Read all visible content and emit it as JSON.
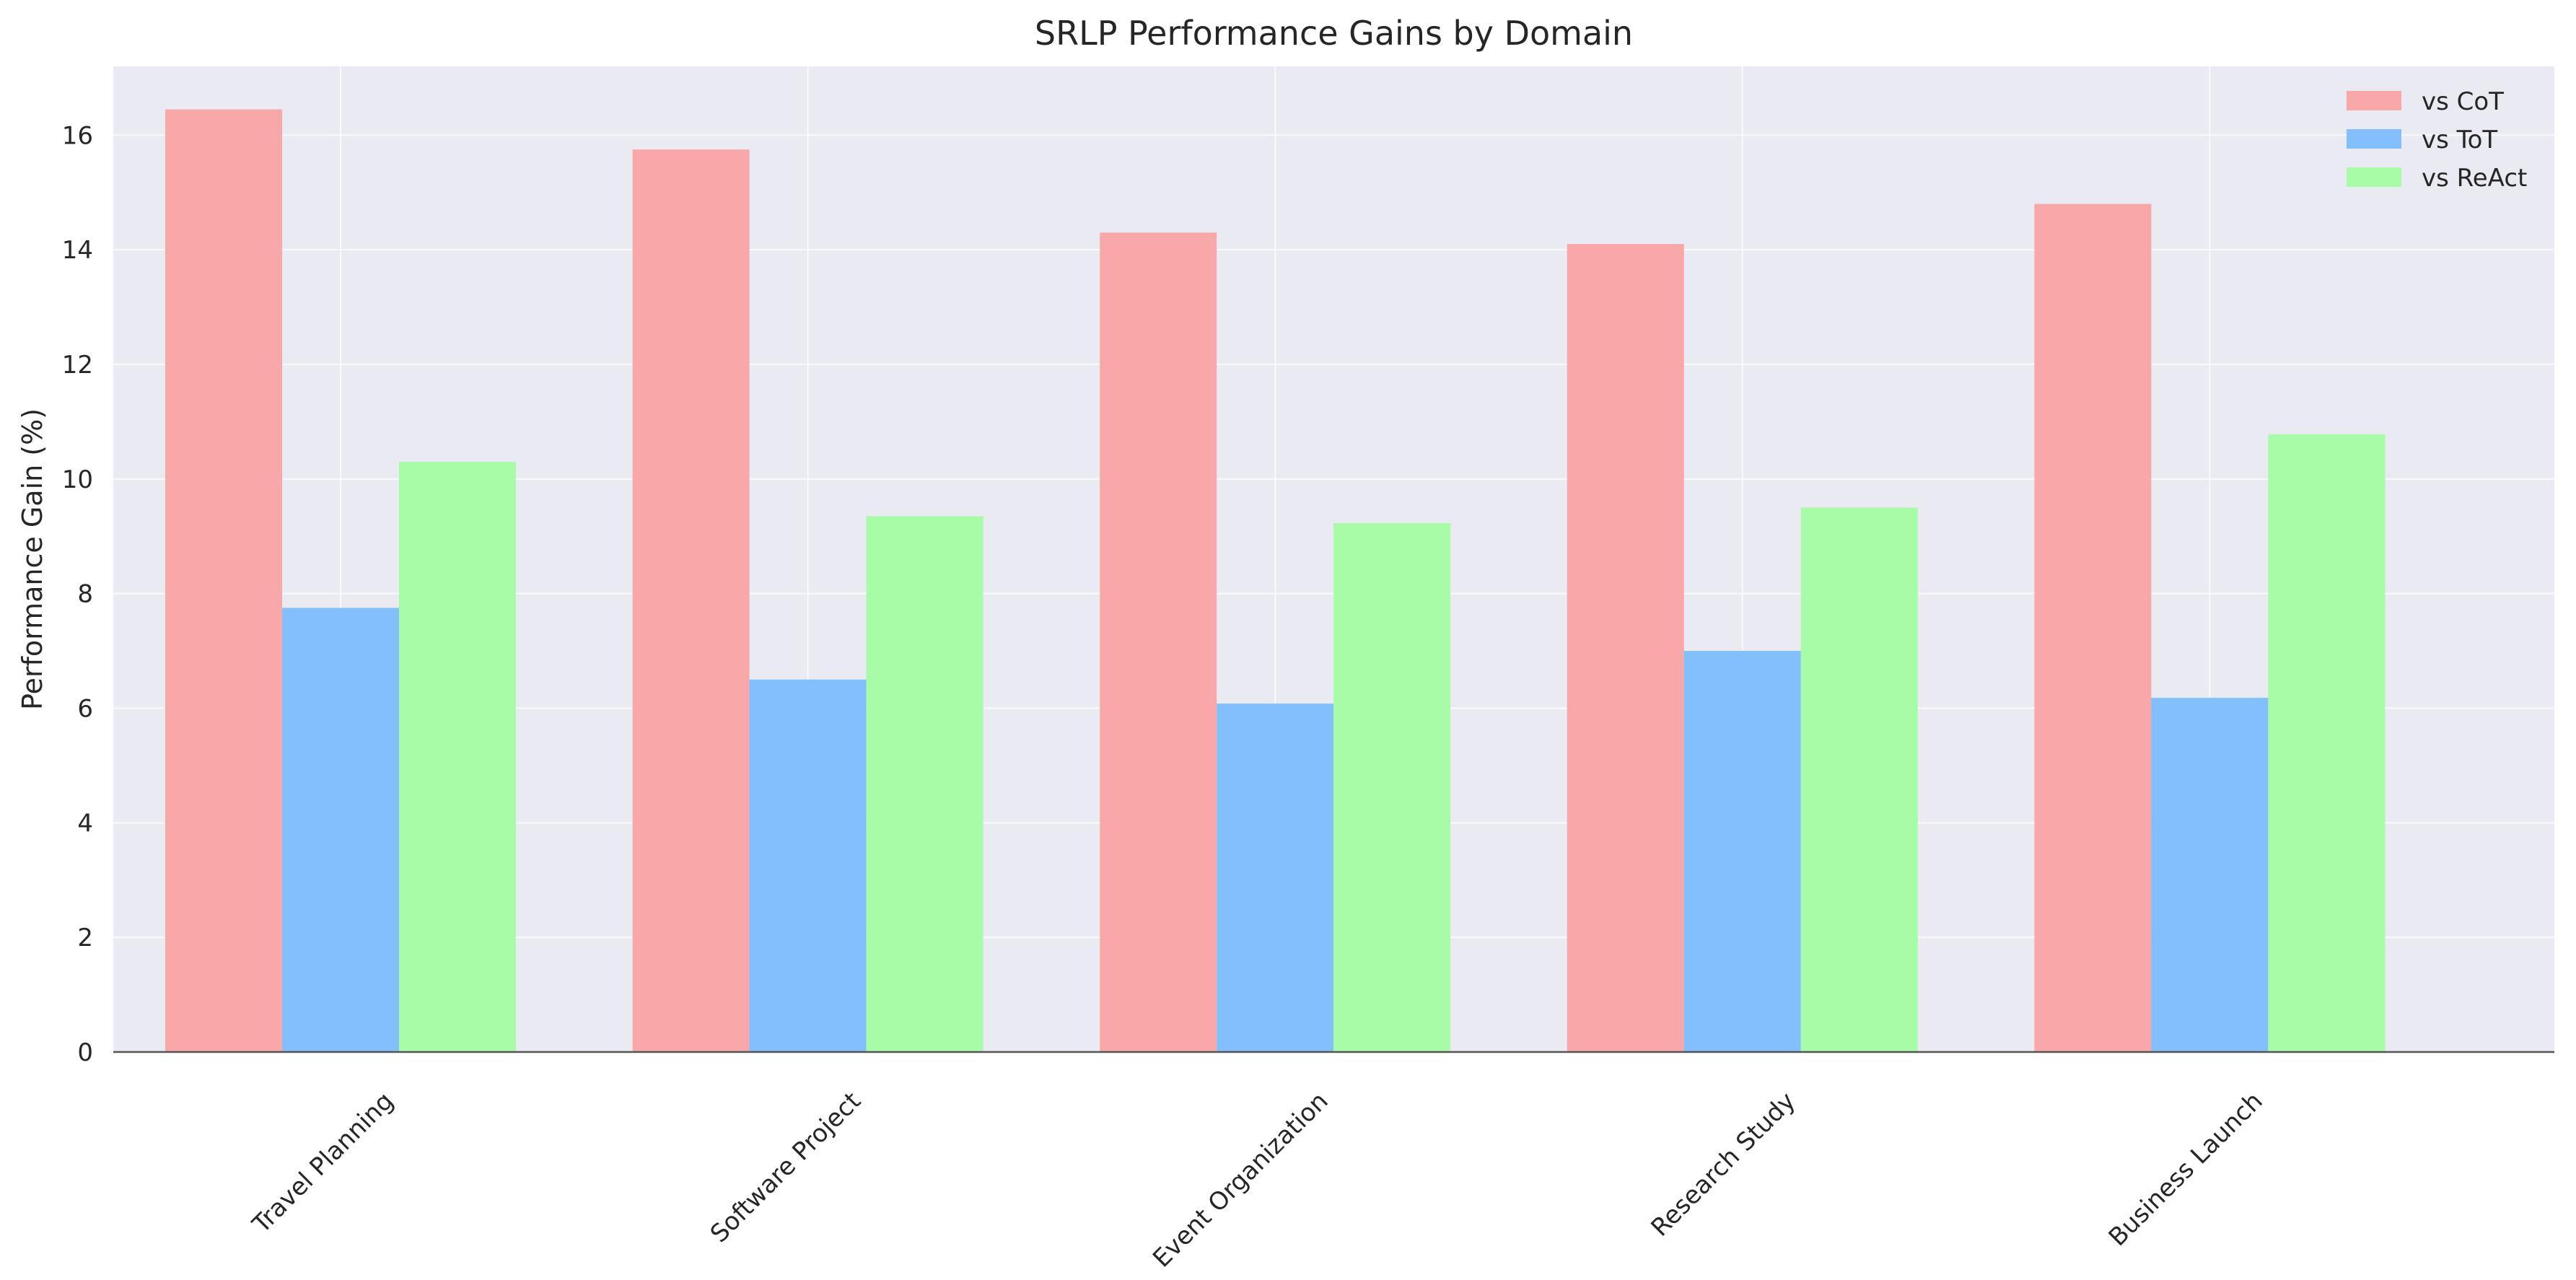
{
  "chart_data": {
    "type": "bar",
    "title": "SRLP Performance Gains by Domain",
    "xlabel": "",
    "ylabel": "Performance Gain (%)",
    "categories": [
      "Travel Planning",
      "Software Project",
      "Event Organization",
      "Research Study",
      "Business Launch"
    ],
    "series": [
      {
        "name": "vs CoT",
        "color": "#f9a8aa",
        "values": [
          16.45,
          15.75,
          14.3,
          14.1,
          14.8
        ]
      },
      {
        "name": "vs ToT",
        "color": "#82bffb",
        "values": [
          7.75,
          6.5,
          6.08,
          7.0,
          6.18
        ]
      },
      {
        "name": "vs ReAct",
        "color": "#a8fba7",
        "values": [
          10.3,
          9.35,
          9.23,
          9.5,
          10.78
        ]
      }
    ],
    "ylim": [
      0,
      17.2
    ],
    "yticks": [
      0,
      2,
      4,
      6,
      8,
      10,
      12,
      14,
      16
    ],
    "grid": true,
    "legend_position": "top-right",
    "background_color": "#eaeaf2"
  }
}
